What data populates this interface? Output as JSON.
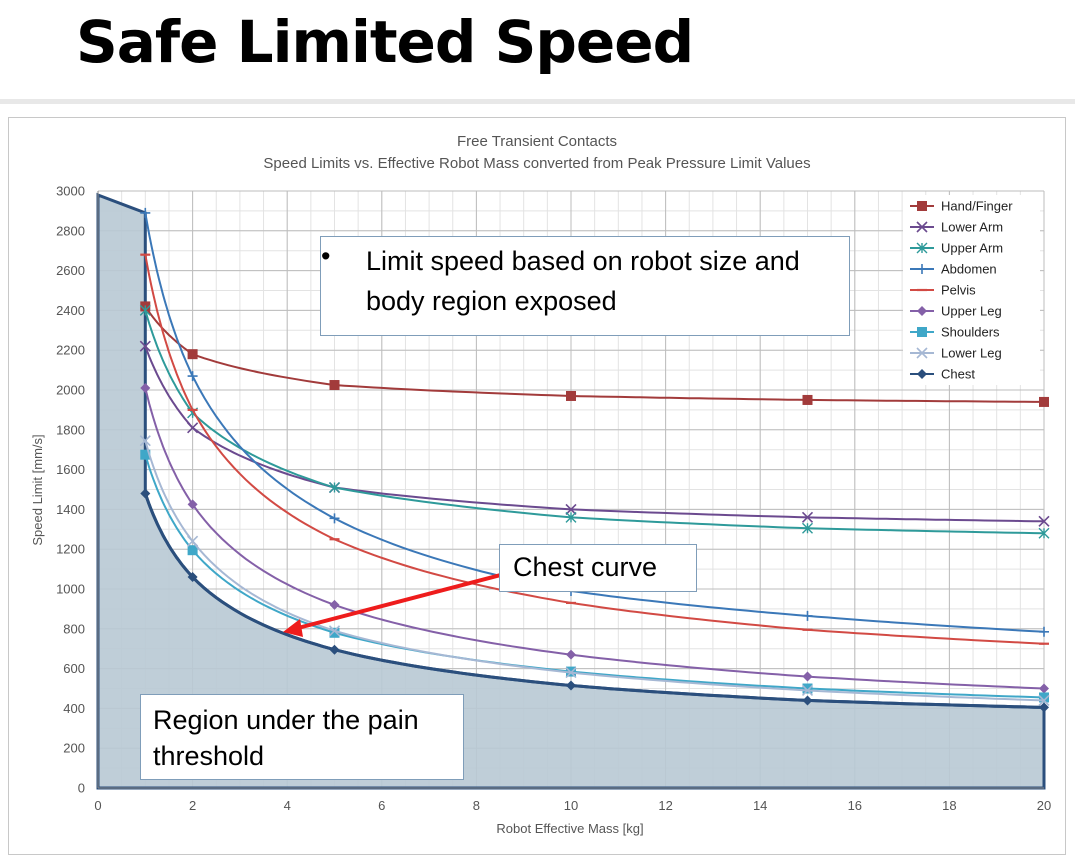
{
  "slide": {
    "title": "Safe Limited Speed"
  },
  "callouts": {
    "bullet_marker": "•",
    "limit_speed": "Limit speed based on robot size and  body region exposed",
    "chest_curve": "Chest curve",
    "region": "Region under the pain threshold"
  },
  "colors": {
    "Hand/Finger": "#a23b3b",
    "Lower Arm": "#6b4a8f",
    "Upper Arm": "#2e9a9a",
    "Abdomen": "#3b78b8",
    "Pelvis": "#d24a44",
    "Upper Leg": "#8460a8",
    "Shoulders": "#3fa7c8",
    "Lower Leg": "#a6b8d4",
    "Chest": "#2b4f7d",
    "region_fill": "#b8c9d4",
    "arrow": "#ee1c1c"
  },
  "chart_data": {
    "type": "line",
    "title": "Free Transient Contacts",
    "subtitle": "Speed Limits vs. Effective Robot Mass converted from Peak Pressure Limit Values",
    "xlabel": "Robot Effective Mass [kg]",
    "ylabel": "Speed Limit [mm/s]",
    "xlim": [
      0,
      20
    ],
    "ylim": [
      0,
      3000
    ],
    "xticks": [
      0,
      2,
      4,
      6,
      8,
      10,
      12,
      14,
      16,
      18,
      20
    ],
    "yticks": [
      0,
      200,
      400,
      600,
      800,
      1000,
      1200,
      1400,
      1600,
      1800,
      2000,
      2200,
      2400,
      2600,
      2800,
      3000
    ],
    "grid": true,
    "legend_position": "top-right",
    "series": [
      {
        "name": "Hand/Finger",
        "marker": "square",
        "x": [
          1,
          2,
          5,
          10,
          15,
          20
        ],
        "y": [
          2420,
          2180,
          2025,
          1970,
          1950,
          1940
        ]
      },
      {
        "name": "Lower Arm",
        "marker": "x",
        "x": [
          1,
          2,
          5,
          10,
          15,
          20
        ],
        "y": [
          2220,
          1810,
          1510,
          1400,
          1360,
          1340
        ]
      },
      {
        "name": "Upper Arm",
        "marker": "star",
        "x": [
          1,
          2,
          5,
          10,
          15,
          20
        ],
        "y": [
          2400,
          1885,
          1510,
          1360,
          1305,
          1280
        ]
      },
      {
        "name": "Abdomen",
        "marker": "plus",
        "x": [
          1,
          2,
          5,
          10,
          15,
          20
        ],
        "y": [
          2890,
          2070,
          1355,
          990,
          865,
          785
        ]
      },
      {
        "name": "Pelvis",
        "marker": "dash",
        "x": [
          1,
          2,
          5,
          10,
          15,
          20
        ],
        "y": [
          2680,
          1900,
          1250,
          930,
          795,
          725
        ]
      },
      {
        "name": "Upper Leg",
        "marker": "diamond",
        "x": [
          1,
          2,
          5,
          10,
          15,
          20
        ],
        "y": [
          2010,
          1425,
          920,
          670,
          560,
          500
        ]
      },
      {
        "name": "Shoulders",
        "marker": "square",
        "x": [
          1,
          2,
          5,
          10,
          15,
          20
        ],
        "y": [
          1675,
          1195,
          780,
          585,
          500,
          455
        ]
      },
      {
        "name": "Lower Leg",
        "marker": "x",
        "x": [
          1,
          2,
          5,
          10,
          15,
          20
        ],
        "y": [
          1745,
          1240,
          790,
          580,
          490,
          440
        ]
      },
      {
        "name": "Chest",
        "marker": "diamond",
        "x": [
          1,
          2,
          5,
          10,
          15,
          20
        ],
        "y": [
          1480,
          1060,
          695,
          515,
          440,
          405
        ]
      }
    ]
  }
}
